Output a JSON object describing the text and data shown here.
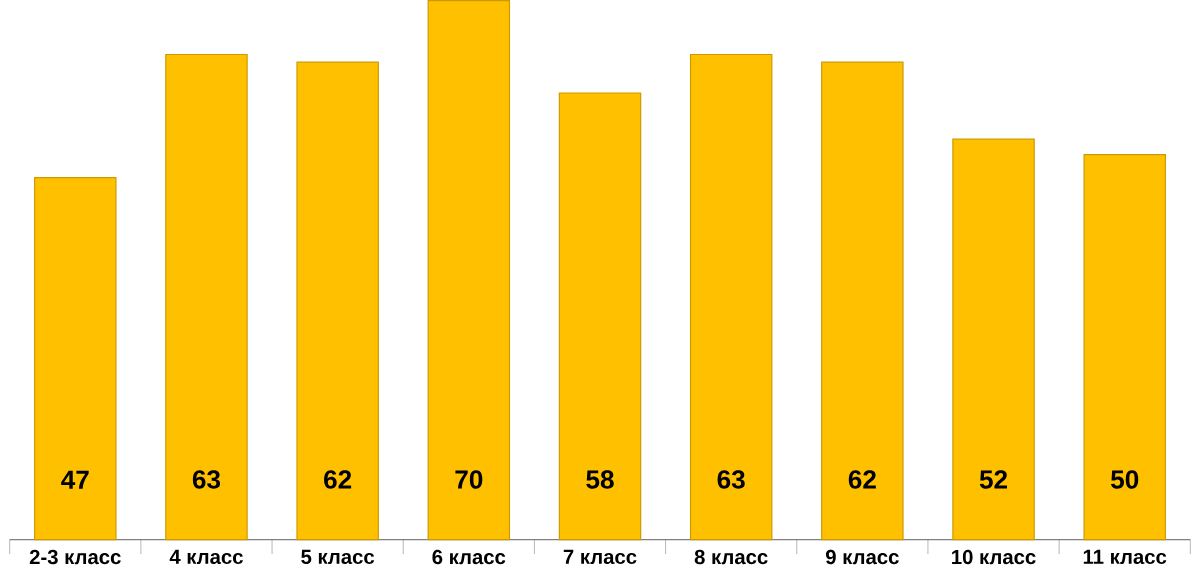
{
  "chart_data": {
    "type": "bar",
    "categories": [
      "2-3 класс",
      "4 класс",
      "5 класс",
      "6 класс",
      "7 класс",
      "8 класс",
      "9 класс",
      "10 класс",
      "11 класс"
    ],
    "values": [
      47,
      63,
      62,
      70,
      58,
      63,
      62,
      52,
      50
    ],
    "color": "#ffc000",
    "data_labels": true
  }
}
